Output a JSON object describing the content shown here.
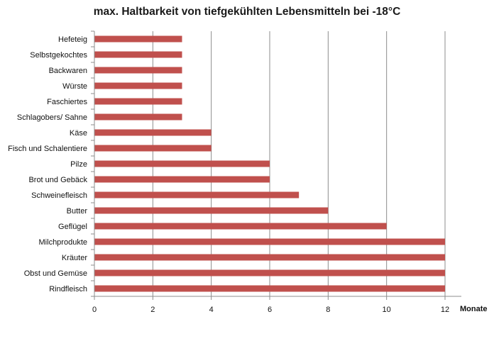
{
  "chart_data": {
    "type": "bar",
    "orientation": "horizontal",
    "title": "max. Haltbarkeit von tiefgekühlten Lebensmitteln bei -18°C",
    "xlabel": "Monate",
    "ylabel": "",
    "xlim": [
      0,
      12
    ],
    "x_ticks": [
      0,
      2,
      4,
      6,
      8,
      10,
      12
    ],
    "grid": "vertical",
    "bar_color": "#c0504d",
    "categories": [
      "Hefeteig",
      "Selbstgekochtes",
      "Backwaren",
      "Würste",
      "Faschiertes",
      "Schlagobers/ Sahne",
      "Käse",
      "Fisch und Schalentiere",
      "Pilze",
      "Brot und Gebäck",
      "Schweinefleisch",
      "Butter",
      "Geflügel",
      "Milchprodukte",
      "Kräuter",
      "Obst und Gemüse",
      "Rindfleisch"
    ],
    "values": [
      3,
      3,
      3,
      3,
      3,
      3,
      4,
      4,
      6,
      6,
      7,
      8,
      10,
      12,
      12,
      12,
      12
    ]
  }
}
